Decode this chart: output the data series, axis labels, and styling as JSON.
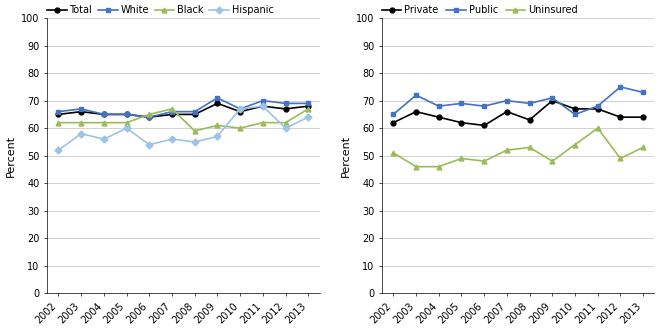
{
  "years": [
    2002,
    2003,
    2004,
    2005,
    2006,
    2007,
    2008,
    2009,
    2010,
    2011,
    2012,
    2013
  ],
  "chart1": {
    "Total": [
      65,
      66,
      65,
      65,
      64,
      65,
      65,
      69,
      66,
      68,
      67,
      68
    ],
    "White": [
      66,
      67,
      65,
      65,
      64,
      66,
      66,
      71,
      67,
      70,
      69,
      69
    ],
    "Black": [
      62,
      62,
      62,
      62,
      65,
      67,
      59,
      61,
      60,
      62,
      62,
      67
    ],
    "Hispanic": [
      52,
      58,
      56,
      60,
      54,
      56,
      55,
      57,
      67,
      68,
      60,
      64
    ]
  },
  "chart1_colors": {
    "Total": "#000000",
    "White": "#4472c4",
    "Black": "#9bbb59",
    "Hispanic": "#9dc3e6"
  },
  "chart1_markers": {
    "Total": "o",
    "White": "s",
    "Black": "^",
    "Hispanic": "D"
  },
  "chart2": {
    "Private": [
      62,
      66,
      64,
      62,
      61,
      66,
      63,
      70,
      67,
      67,
      64,
      64
    ],
    "Public": [
      65,
      72,
      68,
      69,
      68,
      70,
      69,
      71,
      65,
      68,
      75,
      73
    ],
    "Uninsured": [
      51,
      46,
      46,
      49,
      48,
      52,
      53,
      48,
      54,
      60,
      49,
      53
    ]
  },
  "chart2_colors": {
    "Private": "#000000",
    "Public": "#4472c4",
    "Uninsured": "#9bbb59"
  },
  "chart2_markers": {
    "Private": "o",
    "Public": "s",
    "Uninsured": "^"
  },
  "ylabel": "Percent",
  "ylim": [
    0,
    100
  ],
  "yticks": [
    0,
    10,
    20,
    30,
    40,
    50,
    60,
    70,
    80,
    90,
    100
  ],
  "legend1_order": [
    "Total",
    "White",
    "Black",
    "Hispanic"
  ],
  "legend2_order": [
    "Private",
    "Public",
    "Uninsured"
  ]
}
